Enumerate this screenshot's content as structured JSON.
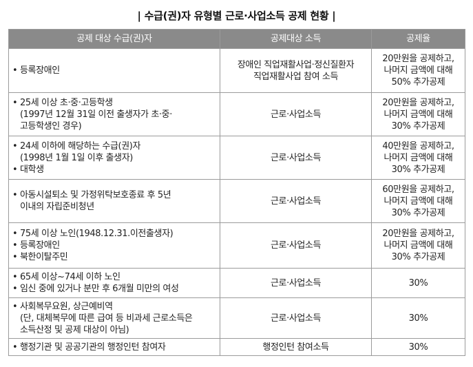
{
  "title": "| 수급(권)자 유형별 근로·사업소득 공제 현황 |",
  "headers": [
    "공제 대상 수급(권)자",
    "공제대상 소득",
    "공제율"
  ],
  "rows": [
    {
      "target": [
        [
          "등록장애인"
        ]
      ],
      "income": [
        "장애인 직업재활사업·정신질환자",
        "직업재활사업 참여 소득"
      ],
      "rate": [
        "20만원을 공제하고,",
        "나머지 금액에 대해",
        "50% 추가공제"
      ]
    },
    {
      "target": [
        [
          "25세 이상 초·중·고등학생",
          "(1997년 12월 31일 이전 출생자가 초·중·",
          "고등학생인 경우)"
        ]
      ],
      "income": [
        "근로·사업소득"
      ],
      "rate": [
        "20만원을 공제하고,",
        "나머지 금액에 대해",
        "30% 추가공제"
      ]
    },
    {
      "target": [
        [
          "24세 이하에 해당하는 수급(권)자",
          "(1998년 1월 1일 이후 출생자)"
        ],
        [
          "대학생"
        ]
      ],
      "income": [
        "근로·사업소득"
      ],
      "rate": [
        "40만원을 공제하고,",
        "나머지 금액에 대해",
        "30% 추가공제"
      ]
    },
    {
      "target": [
        [
          "아동시설퇴소 및 가정위탁보호종료 후 5년",
          "이내의 자립준비청년"
        ]
      ],
      "income": [
        "근로·사업소득"
      ],
      "rate": [
        "60만원을 공제하고,",
        "나머지 금액에 대해",
        "30% 추가공제"
      ]
    },
    {
      "target": [
        [
          "75세 이상 노인(1948.12.31.이전출생자)"
        ],
        [
          "등록장애인"
        ],
        [
          "북한이탈주민"
        ]
      ],
      "income": [
        "근로·사업소득"
      ],
      "rate": [
        "20만원을 공제하고,",
        "나머지 금액에 대해",
        "30% 추가공제"
      ]
    },
    {
      "target": [
        [
          "65세 이상~74세 이하 노인"
        ],
        [
          "임신 중에 있거나 분만 후 6개월 미만의 여성"
        ]
      ],
      "income": [
        "근로·사업소득"
      ],
      "rate": [
        "30%"
      ]
    },
    {
      "target": [
        [
          "사회복무요원, 상근예비역",
          "(단, 대체복무에 따른 급여 등 비과세 근로소득은",
          "소득산정 및 공제 대상이 아님)"
        ]
      ],
      "income": [
        "근로·사업소득"
      ],
      "rate": [
        "30%"
      ]
    },
    {
      "target": [
        [
          "행정기관 및 공공기관의 행정인턴 참여자"
        ]
      ],
      "income": [
        "행정인턴 참여소득"
      ],
      "rate": [
        "30%"
      ]
    }
  ]
}
